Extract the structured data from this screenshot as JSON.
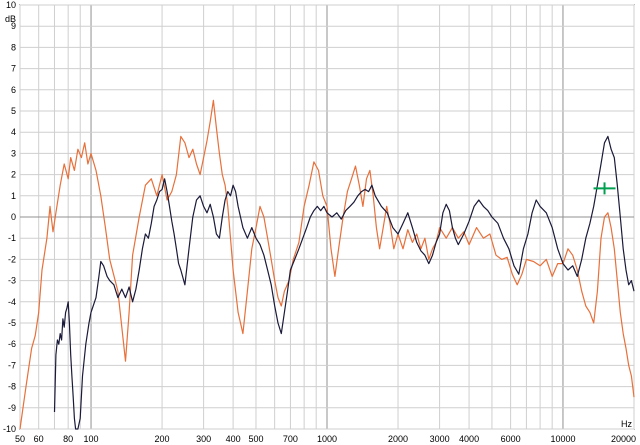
{
  "chart_data": {
    "type": "line",
    "title": "",
    "xlabel": "",
    "ylabel": "",
    "x_unit": "Hz",
    "y_unit": "dB",
    "x_scale": "log",
    "xlim": [
      50,
      20000
    ],
    "ylim": [
      -10,
      10
    ],
    "x_ticks": [
      50,
      60,
      80,
      100,
      200,
      300,
      400,
      500,
      700,
      1000,
      2000,
      3000,
      4000,
      6000,
      10000,
      20000
    ],
    "y_ticks": [
      10,
      9,
      8,
      7,
      6,
      5,
      4,
      3,
      2,
      1,
      0,
      -1,
      -2,
      -3,
      -4,
      -5,
      -6,
      -7,
      -8,
      -9,
      -10
    ],
    "grid": true,
    "cursor_marker": {
      "x": 15000,
      "y": 1.35,
      "color": "#00a050"
    },
    "series": [
      {
        "color": "#e8703a",
        "points": [
          [
            50,
            -10
          ],
          [
            53,
            -8
          ],
          [
            56,
            -6.2
          ],
          [
            58,
            -5.6
          ],
          [
            60,
            -4.5
          ],
          [
            62,
            -2.5
          ],
          [
            65,
            -1
          ],
          [
            67,
            0.5
          ],
          [
            69,
            -0.7
          ],
          [
            71,
            0.2
          ],
          [
            74,
            1.5
          ],
          [
            77,
            2.5
          ],
          [
            80,
            1.8
          ],
          [
            82,
            2.8
          ],
          [
            85,
            2.2
          ],
          [
            88,
            3.2
          ],
          [
            91,
            2.8
          ],
          [
            94,
            3.5
          ],
          [
            97,
            2.5
          ],
          [
            100,
            3.0
          ],
          [
            105,
            2.2
          ],
          [
            110,
            1.0
          ],
          [
            115,
            -0.5
          ],
          [
            120,
            -2.0
          ],
          [
            130,
            -3.5
          ],
          [
            140,
            -6.8
          ],
          [
            145,
            -4.5
          ],
          [
            150,
            -1.8
          ],
          [
            160,
            0
          ],
          [
            170,
            1.5
          ],
          [
            180,
            1.8
          ],
          [
            190,
            1.0
          ],
          [
            200,
            2.0
          ],
          [
            210,
            0.8
          ],
          [
            220,
            1.2
          ],
          [
            230,
            2.0
          ],
          [
            240,
            3.8
          ],
          [
            250,
            3.5
          ],
          [
            260,
            2.8
          ],
          [
            270,
            3.2
          ],
          [
            280,
            2.5
          ],
          [
            290,
            2.0
          ],
          [
            300,
            2.8
          ],
          [
            310,
            3.6
          ],
          [
            320,
            4.5
          ],
          [
            330,
            5.5
          ],
          [
            340,
            4.2
          ],
          [
            350,
            3.0
          ],
          [
            360,
            2.0
          ],
          [
            370,
            1.5
          ],
          [
            380,
            0.5
          ],
          [
            390,
            -1.0
          ],
          [
            400,
            -2.5
          ],
          [
            420,
            -4.5
          ],
          [
            440,
            -5.5
          ],
          [
            460,
            -3.5
          ],
          [
            480,
            -1.5
          ],
          [
            500,
            -0.5
          ],
          [
            520,
            0.5
          ],
          [
            540,
            0
          ],
          [
            560,
            -1.0
          ],
          [
            580,
            -2.0
          ],
          [
            600,
            -3.0
          ],
          [
            620,
            -3.8
          ],
          [
            640,
            -4.2
          ],
          [
            660,
            -3.5
          ],
          [
            690,
            -3.0
          ],
          [
            720,
            -2.0
          ],
          [
            760,
            -1.2
          ],
          [
            800,
            0.5
          ],
          [
            840,
            1.5
          ],
          [
            880,
            2.6
          ],
          [
            920,
            2.2
          ],
          [
            960,
            1.0
          ],
          [
            1000,
            0.5
          ],
          [
            1040,
            -1.5
          ],
          [
            1080,
            -2.8
          ],
          [
            1120,
            -1.5
          ],
          [
            1170,
            0
          ],
          [
            1220,
            1.2
          ],
          [
            1270,
            1.8
          ],
          [
            1320,
            2.4
          ],
          [
            1370,
            1.5
          ],
          [
            1420,
            0.5
          ],
          [
            1470,
            1.8
          ],
          [
            1520,
            2.2
          ],
          [
            1570,
            1.0
          ],
          [
            1620,
            -0.5
          ],
          [
            1670,
            -1.5
          ],
          [
            1730,
            -0.5
          ],
          [
            1790,
            0.5
          ],
          [
            1850,
            -0.3
          ],
          [
            1920,
            -1.5
          ],
          [
            2000,
            -0.8
          ],
          [
            2100,
            -1.5
          ],
          [
            2200,
            -0.6
          ],
          [
            2300,
            -1.2
          ],
          [
            2400,
            -0.8
          ],
          [
            2500,
            -1.5
          ],
          [
            2600,
            -1.0
          ],
          [
            2700,
            -2.0
          ],
          [
            2800,
            -1.5
          ],
          [
            2900,
            -1.2
          ],
          [
            3000,
            -0.5
          ],
          [
            3200,
            -1.0
          ],
          [
            3400,
            -0.5
          ],
          [
            3600,
            -1.0
          ],
          [
            3800,
            -0.7
          ],
          [
            4000,
            -1.3
          ],
          [
            4300,
            -0.5
          ],
          [
            4600,
            -1.0
          ],
          [
            4900,
            -0.8
          ],
          [
            5200,
            -1.8
          ],
          [
            5500,
            -2.0
          ],
          [
            5800,
            -1.9
          ],
          [
            6100,
            -2.7
          ],
          [
            6400,
            -3.2
          ],
          [
            6700,
            -2.7
          ],
          [
            7000,
            -2.0
          ],
          [
            7500,
            -2.1
          ],
          [
            8000,
            -2.3
          ],
          [
            8500,
            -2.0
          ],
          [
            9000,
            -2.8
          ],
          [
            9500,
            -2.2
          ],
          [
            10000,
            -2.2
          ],
          [
            10500,
            -1.5
          ],
          [
            11000,
            -1.8
          ],
          [
            11500,
            -2.5
          ],
          [
            12000,
            -3.5
          ],
          [
            12500,
            -4.2
          ],
          [
            13000,
            -4.5
          ],
          [
            13500,
            -5.0
          ],
          [
            14000,
            -3.5
          ],
          [
            14500,
            -1.0
          ],
          [
            15000,
            0
          ],
          [
            15500,
            0.2
          ],
          [
            16000,
            -0.5
          ],
          [
            16500,
            -1.5
          ],
          [
            17000,
            -3.0
          ],
          [
            17500,
            -4.5
          ],
          [
            18000,
            -5.5
          ],
          [
            18500,
            -6.2
          ],
          [
            19000,
            -7.0
          ],
          [
            19500,
            -7.5
          ],
          [
            20000,
            -8.5
          ]
        ]
      },
      {
        "color": "#1a1a3a",
        "points": [
          [
            70,
            -9.2
          ],
          [
            71,
            -6.5
          ],
          [
            72,
            -5.8
          ],
          [
            73,
            -6.0
          ],
          [
            74,
            -5.5
          ],
          [
            75,
            -5.8
          ],
          [
            76,
            -4.8
          ],
          [
            77,
            -5.2
          ],
          [
            78,
            -4.5
          ],
          [
            79,
            -4.3
          ],
          [
            80,
            -4.0
          ],
          [
            81,
            -5.0
          ],
          [
            82,
            -6.5
          ],
          [
            83,
            -7.5
          ],
          [
            84,
            -8.5
          ],
          [
            85,
            -9.5
          ],
          [
            86,
            -10
          ],
          [
            88,
            -10
          ],
          [
            90,
            -9.5
          ],
          [
            92,
            -7.5
          ],
          [
            95,
            -6.0
          ],
          [
            98,
            -5.0
          ],
          [
            100,
            -4.5
          ],
          [
            105,
            -3.8
          ],
          [
            108,
            -2.8
          ],
          [
            110,
            -2.1
          ],
          [
            113,
            -2.3
          ],
          [
            117,
            -2.8
          ],
          [
            120,
            -3.0
          ],
          [
            125,
            -3.2
          ],
          [
            130,
            -3.8
          ],
          [
            135,
            -3.4
          ],
          [
            140,
            -3.8
          ],
          [
            145,
            -3.3
          ],
          [
            150,
            -4.0
          ],
          [
            155,
            -3.4
          ],
          [
            160,
            -2.5
          ],
          [
            165,
            -1.5
          ],
          [
            170,
            -0.8
          ],
          [
            175,
            -1.0
          ],
          [
            180,
            -0.3
          ],
          [
            185,
            0.5
          ],
          [
            190,
            0.8
          ],
          [
            195,
            1.2
          ],
          [
            200,
            1.3
          ],
          [
            205,
            1.8
          ],
          [
            210,
            1.2
          ],
          [
            215,
            0.5
          ],
          [
            220,
            -0.2
          ],
          [
            225,
            -0.8
          ],
          [
            230,
            -1.5
          ],
          [
            235,
            -2.2
          ],
          [
            240,
            -2.5
          ],
          [
            250,
            -3.2
          ],
          [
            260,
            -1.5
          ],
          [
            270,
            0
          ],
          [
            280,
            0.8
          ],
          [
            290,
            1.0
          ],
          [
            300,
            0.5
          ],
          [
            310,
            0.2
          ],
          [
            320,
            0.6
          ],
          [
            330,
            0.0
          ],
          [
            340,
            -0.8
          ],
          [
            350,
            -1.0
          ],
          [
            360,
            0
          ],
          [
            370,
            0.8
          ],
          [
            380,
            1.2
          ],
          [
            390,
            1.0
          ],
          [
            400,
            1.5
          ],
          [
            410,
            1.2
          ],
          [
            420,
            0.5
          ],
          [
            440,
            -0.5
          ],
          [
            460,
            -1.0
          ],
          [
            480,
            -0.5
          ],
          [
            500,
            -1.0
          ],
          [
            520,
            -1.3
          ],
          [
            540,
            -1.8
          ],
          [
            560,
            -2.5
          ],
          [
            580,
            -3.2
          ],
          [
            600,
            -4.2
          ],
          [
            620,
            -5.0
          ],
          [
            640,
            -5.5
          ],
          [
            660,
            -4.5
          ],
          [
            680,
            -3.5
          ],
          [
            700,
            -2.5
          ],
          [
            730,
            -2.0
          ],
          [
            760,
            -1.5
          ],
          [
            790,
            -1.0
          ],
          [
            820,
            -0.5
          ],
          [
            850,
            0.0
          ],
          [
            880,
            0.3
          ],
          [
            910,
            0.5
          ],
          [
            940,
            0.3
          ],
          [
            970,
            0.5
          ],
          [
            1000,
            0.2
          ],
          [
            1050,
            0.0
          ],
          [
            1100,
            0.2
          ],
          [
            1150,
            -0.1
          ],
          [
            1200,
            0.3
          ],
          [
            1250,
            0.5
          ],
          [
            1300,
            0.7
          ],
          [
            1350,
            1.0
          ],
          [
            1400,
            1.2
          ],
          [
            1450,
            1.3
          ],
          [
            1500,
            1.2
          ],
          [
            1550,
            1.5
          ],
          [
            1600,
            1.0
          ],
          [
            1700,
            0.5
          ],
          [
            1800,
            0.2
          ],
          [
            1900,
            -0.5
          ],
          [
            2000,
            -0.8
          ],
          [
            2100,
            -0.3
          ],
          [
            2200,
            0.2
          ],
          [
            2300,
            -0.5
          ],
          [
            2400,
            -1.2
          ],
          [
            2500,
            -1.6
          ],
          [
            2600,
            -1.8
          ],
          [
            2700,
            -2.2
          ],
          [
            2800,
            -1.8
          ],
          [
            2900,
            -1.2
          ],
          [
            3000,
            -0.8
          ],
          [
            3100,
            0.2
          ],
          [
            3200,
            0.6
          ],
          [
            3300,
            0.3
          ],
          [
            3400,
            -0.5
          ],
          [
            3500,
            -1.0
          ],
          [
            3600,
            -1.3
          ],
          [
            3800,
            -0.8
          ],
          [
            4000,
            -0.2
          ],
          [
            4200,
            0.5
          ],
          [
            4400,
            0.8
          ],
          [
            4600,
            0.5
          ],
          [
            4800,
            0.3
          ],
          [
            5000,
            0
          ],
          [
            5300,
            -0.3
          ],
          [
            5600,
            -1.0
          ],
          [
            5900,
            -1.5
          ],
          [
            6200,
            -2.3
          ],
          [
            6500,
            -2.7
          ],
          [
            6800,
            -1.5
          ],
          [
            7100,
            -0.8
          ],
          [
            7400,
            0.2
          ],
          [
            7700,
            0.8
          ],
          [
            8000,
            0.5
          ],
          [
            8500,
            0.2
          ],
          [
            9000,
            -0.5
          ],
          [
            9500,
            -1.5
          ],
          [
            10000,
            -2.2
          ],
          [
            10500,
            -2.5
          ],
          [
            11000,
            -2.3
          ],
          [
            11500,
            -2.8
          ],
          [
            12000,
            -2.0
          ],
          [
            12500,
            -1.0
          ],
          [
            13000,
            -0.3
          ],
          [
            13500,
            0.5
          ],
          [
            14000,
            1.5
          ],
          [
            14500,
            2.5
          ],
          [
            15000,
            3.5
          ],
          [
            15500,
            3.8
          ],
          [
            16000,
            3.2
          ],
          [
            16500,
            2.8
          ],
          [
            17000,
            1.5
          ],
          [
            17500,
            0
          ],
          [
            18000,
            -1.5
          ],
          [
            18500,
            -2.5
          ],
          [
            19000,
            -3.2
          ],
          [
            19500,
            -3.0
          ],
          [
            20000,
            -3.5
          ]
        ]
      }
    ]
  }
}
